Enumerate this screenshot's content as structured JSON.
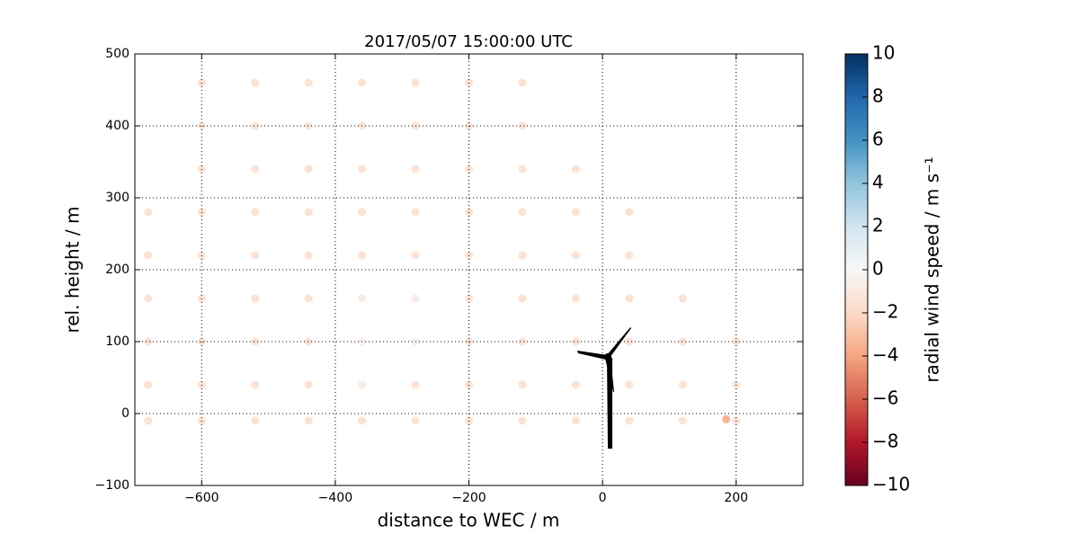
{
  "chart_data": {
    "type": "scatter",
    "title": "2017/05/07 15:00:00 UTC",
    "x_label": "distance to WEC / m",
    "y_label": "rel. height / m",
    "colorbar_label": "radial wind speed / m s⁻¹",
    "xlim": [
      -700,
      300
    ],
    "ylim": [
      -100,
      500
    ],
    "xticks": [
      {
        "value": -600,
        "label": "−600"
      },
      {
        "value": -400,
        "label": "−400"
      },
      {
        "value": -200,
        "label": "−200"
      },
      0,
      200
    ],
    "yticks": [
      {
        "value": -100,
        "label": "−100"
      },
      0,
      100,
      200,
      300,
      400,
      500
    ],
    "clim": [
      -10,
      10
    ],
    "cticks": [
      {
        "value": -10,
        "label": "−10"
      },
      {
        "value": -8,
        "label": "−8"
      },
      {
        "value": -6,
        "label": "−6"
      },
      {
        "value": -4,
        "label": "−4"
      },
      {
        "value": -2,
        "label": "−2"
      },
      0,
      2,
      4,
      6,
      8,
      10
    ],
    "colormap": [
      "#67001f",
      "#b2182b",
      "#d6604d",
      "#f4a582",
      "#fddbc7",
      "#f7f7f7",
      "#d1e5f0",
      "#92c5de",
      "#4393c3",
      "#2166ac",
      "#053061"
    ],
    "grid": true,
    "x": [
      -680,
      -600,
      -520,
      -440,
      -360,
      -280,
      -200,
      -120,
      -40,
      40,
      120,
      200,
      -680,
      -600,
      -520,
      -440,
      -360,
      -280,
      -200,
      -120,
      -40,
      40,
      120,
      200,
      -680,
      -600,
      -520,
      -440,
      -360,
      -280,
      -200,
      -120,
      -40,
      40,
      120,
      200,
      -680,
      -600,
      -520,
      -440,
      -360,
      -280,
      -200,
      -120,
      -40,
      40,
      120,
      -680,
      -600,
      -520,
      -440,
      -360,
      -280,
      -200,
      -120,
      -40,
      40,
      -680,
      -600,
      -520,
      -440,
      -360,
      -280,
      -200,
      -120,
      -40,
      40,
      -600,
      -520,
      -440,
      -360,
      -280,
      -200,
      -120,
      -40,
      -600,
      -520,
      -440,
      -360,
      -280,
      -200,
      -120,
      -600,
      -520,
      -440,
      -360,
      -280,
      -200,
      -120,
      185
    ],
    "y": [
      -10,
      -10,
      -10,
      -10,
      -10,
      -10,
      -10,
      -10,
      -10,
      -10,
      -10,
      -10,
      40,
      40,
      40,
      40,
      40,
      40,
      40,
      40,
      40,
      40,
      40,
      40,
      100,
      100,
      100,
      100,
      100,
      100,
      100,
      100,
      100,
      100,
      100,
      100,
      160,
      160,
      160,
      160,
      160,
      160,
      160,
      160,
      160,
      160,
      160,
      220,
      220,
      220,
      220,
      220,
      220,
      220,
      220,
      220,
      220,
      280,
      280,
      280,
      280,
      280,
      280,
      280,
      280,
      280,
      280,
      340,
      340,
      340,
      340,
      340,
      340,
      340,
      340,
      400,
      400,
      400,
      400,
      400,
      400,
      400,
      460,
      460,
      460,
      460,
      460,
      460,
      460,
      -8
    ],
    "values": [
      -1.5,
      -1.5,
      -1.5,
      -1.5,
      -1.5,
      -1.5,
      -1.5,
      -1.5,
      -1.5,
      -1.5,
      -1.5,
      -1.5,
      -1.5,
      -1.5,
      -1.5,
      -1.5,
      -0.8,
      -1.5,
      -1.5,
      -1.5,
      -1.5,
      -1.5,
      -1.5,
      -1.5,
      -1.5,
      -1.5,
      -1.5,
      -1.5,
      -0.5,
      -0.5,
      -1.5,
      -1.5,
      -1.5,
      -1.5,
      -1.5,
      -1.5,
      -1.5,
      -1.5,
      -1.5,
      -1.5,
      -0.8,
      -0.8,
      -1.5,
      -1.5,
      -1.5,
      -1.5,
      -1.5,
      -1.5,
      -1.5,
      -1.5,
      -1.5,
      -1.5,
      -1.5,
      -1.5,
      -1.5,
      -1.5,
      -1.5,
      -1.5,
      -1.5,
      -1.5,
      -1.5,
      -1.5,
      -1.5,
      -1.5,
      -1.5,
      -1.5,
      -1.5,
      -1.5,
      -1.5,
      -1.5,
      -1.5,
      -1.5,
      -1.5,
      -1.5,
      -1.5,
      -1.5,
      -1.5,
      -1.5,
      -1.5,
      -1.5,
      -1.5,
      -1.5,
      -1.5,
      -1.5,
      -1.5,
      -1.5,
      -1.5,
      -1.5,
      -1.5,
      -3.5
    ]
  }
}
